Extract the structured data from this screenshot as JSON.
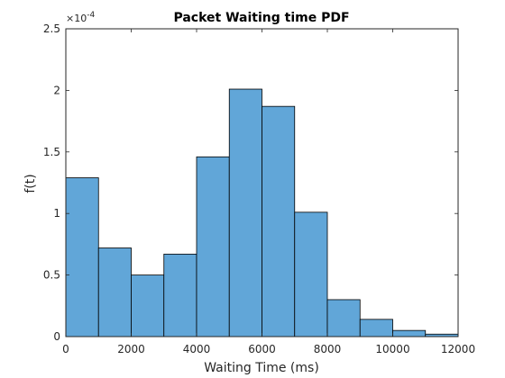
{
  "chart_data": {
    "type": "bar",
    "title": "Packet Waiting time PDF",
    "xlabel": "Waiting Time (ms)",
    "ylabel": "f(t)",
    "y_multiplier": "×10",
    "y_exponent": "-4",
    "xlim": [
      0,
      12000
    ],
    "ylim": [
      0,
      2.5
    ],
    "bin_width": 1000,
    "bin_edges": [
      0,
      1000,
      2000,
      3000,
      4000,
      5000,
      6000,
      7000,
      8000,
      9000,
      10000,
      11000,
      12000
    ],
    "values": [
      1.29,
      0.72,
      0.5,
      0.67,
      1.46,
      2.01,
      1.87,
      1.01,
      0.3,
      0.14,
      0.05,
      0.02
    ],
    "x_ticks": [
      0,
      2000,
      4000,
      6000,
      8000,
      10000,
      12000
    ],
    "x_tick_labels": [
      "0",
      "2000",
      "4000",
      "6000",
      "8000",
      "10000",
      "12000"
    ],
    "y_ticks": [
      0,
      0.5,
      1,
      1.5,
      2,
      2.5
    ],
    "y_tick_labels": [
      "0",
      "0.5",
      "1",
      "1.5",
      "2",
      "2.5"
    ],
    "bar_color": "#61a6d8",
    "edge_color": "#000000",
    "grid": false,
    "box": true
  }
}
